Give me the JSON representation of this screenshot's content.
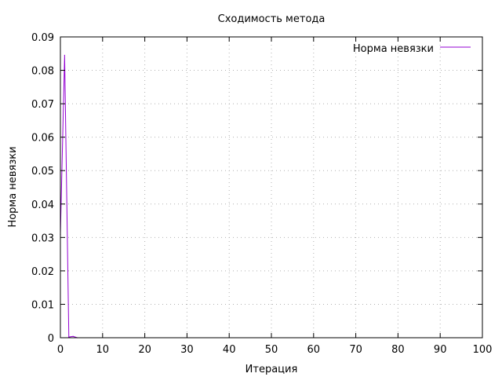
{
  "chart_data": {
    "type": "line",
    "title": "Сходимость метода",
    "xlabel": "Итерация",
    "ylabel": "Норма невязки",
    "xlim": [
      0,
      100
    ],
    "ylim": [
      0,
      0.09
    ],
    "x_ticks": [
      0,
      10,
      20,
      30,
      40,
      50,
      60,
      70,
      80,
      90,
      100
    ],
    "y_ticks": [
      0,
      0.01,
      0.02,
      0.03,
      0.04,
      0.05,
      0.06,
      0.07,
      0.08,
      0.09
    ],
    "grid": true,
    "grid_style": "dotted",
    "legend_position": "top-right",
    "series": [
      {
        "name": "Норма невязки",
        "color": "#9400d3",
        "x": [
          0,
          1,
          2,
          3,
          4
        ],
        "y": [
          0.031,
          0.0845,
          0.0002,
          0.0004,
          0.0
        ]
      }
    ]
  }
}
